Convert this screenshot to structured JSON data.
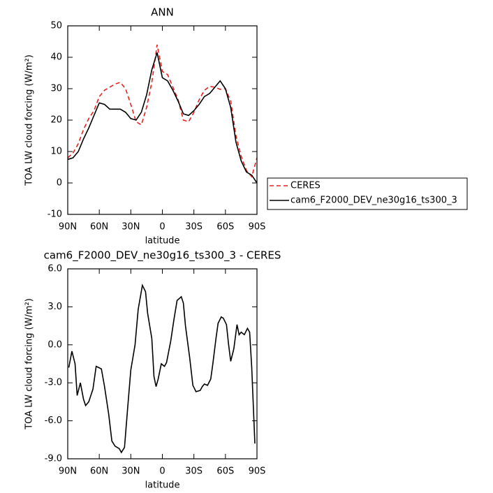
{
  "chart_data": [
    {
      "type": "line",
      "title": "ANN",
      "x_label": "latitude",
      "y_label": "TOA LW cloud forcing (W/m²)",
      "x": [
        90,
        85,
        80,
        75,
        70,
        65,
        60,
        55,
        50,
        45,
        40,
        35,
        30,
        25,
        20,
        15,
        10,
        5,
        0,
        -5,
        -10,
        -15,
        -20,
        -25,
        -30,
        -35,
        -40,
        -45,
        -50,
        -55,
        -60,
        -65,
        -70,
        -75,
        -80,
        -85,
        -90
      ],
      "series": [
        {
          "name": "CERES",
          "color": "#e8201e",
          "style": "dashed",
          "values": [
            8,
            9.5,
            12.5,
            17,
            20.5,
            23,
            27.5,
            29.5,
            30.5,
            31.5,
            32,
            30,
            25,
            19.5,
            18.5,
            24,
            32,
            44,
            35.5,
            34.5,
            30.5,
            26.5,
            20,
            19.5,
            22.5,
            26.5,
            29.5,
            30.7,
            30.5,
            29.8,
            30,
            26,
            15,
            8.5,
            4,
            2,
            8
          ]
        },
        {
          "name": "cam6_F2000_DEV_ne30g16_ts300_3",
          "color": "#000000",
          "style": "solid",
          "values": [
            7.5,
            8,
            10,
            14,
            17.5,
            21.5,
            25.5,
            25,
            23.5,
            23.5,
            23.5,
            22.5,
            20.5,
            20,
            22.5,
            28,
            36,
            41.5,
            33.5,
            32.5,
            29.5,
            26,
            22,
            21.5,
            23,
            25,
            27.5,
            28.5,
            30.5,
            32.5,
            30,
            24,
            13,
            7,
            3.5,
            2.5,
            0
          ]
        }
      ],
      "xlim": [
        90,
        -90
      ],
      "xticks": [
        {
          "value": 90,
          "label": "90N"
        },
        {
          "value": 60,
          "label": "60N"
        },
        {
          "value": 30,
          "label": "30N"
        },
        0,
        {
          "value": -30,
          "label": "30S"
        },
        {
          "value": -60,
          "label": "60S"
        },
        {
          "value": -90,
          "label": "90S"
        }
      ],
      "ylim": [
        -10,
        50
      ],
      "yticks": [
        -10,
        0,
        10,
        20,
        30,
        40,
        50
      ],
      "legend": "right"
    },
    {
      "type": "line",
      "title": "cam6_F2000_DEV_ne30g16_ts300_3 - CERES",
      "x_label": "latitude",
      "y_label": "TOA LW cloud forcing (W/m²)",
      "x": [
        89,
        86,
        83,
        81,
        78,
        75,
        73,
        70,
        66,
        63,
        58,
        55,
        51,
        48,
        45,
        41,
        39,
        36,
        33,
        30,
        26,
        23,
        19,
        16,
        14,
        10,
        8,
        6,
        4,
        1,
        -2,
        -4,
        -8,
        -11,
        -14,
        -18,
        -20,
        -22,
        -26,
        -29,
        -32,
        -36,
        -38,
        -40,
        -43,
        -46,
        -48,
        -51,
        -53,
        -56,
        -58,
        -61,
        -63,
        -65,
        -68,
        -71,
        -73,
        -75,
        -78,
        -81,
        -83,
        -85,
        -88
      ],
      "values": [
        -1.8,
        -0.5,
        -1.5,
        -4.0,
        -3.0,
        -4.3,
        -4.8,
        -4.5,
        -3.5,
        -1.7,
        -1.9,
        -3.3,
        -5.5,
        -7.6,
        -8.0,
        -8.2,
        -8.5,
        -8.1,
        -5.0,
        -2.0,
        0.0,
        2.8,
        4.7,
        4.2,
        2.5,
        0.5,
        -2.5,
        -3.3,
        -2.7,
        -1.5,
        -1.7,
        -1.4,
        0.3,
        2.0,
        3.5,
        3.8,
        3.3,
        1.5,
        -1.0,
        -3.2,
        -3.7,
        -3.6,
        -3.3,
        -3.1,
        -3.2,
        -2.7,
        -1.5,
        0.5,
        1.7,
        2.2,
        2.1,
        1.6,
        0.0,
        -1.3,
        -0.3,
        1.6,
        0.8,
        1.0,
        0.8,
        1.3,
        1.0,
        -1.8,
        -7.8
      ],
      "color": "#000000",
      "xlim": [
        90,
        -90
      ],
      "xticks": [
        {
          "value": 90,
          "label": "90N"
        },
        {
          "value": 60,
          "label": "60N"
        },
        {
          "value": 30,
          "label": "30N"
        },
        0,
        {
          "value": -30,
          "label": "30S"
        },
        {
          "value": -60,
          "label": "60S"
        },
        {
          "value": -90,
          "label": "90S"
        }
      ],
      "ylim": [
        -9,
        6
      ],
      "yticks": [
        {
          "value": -9,
          "label": "-9.0"
        },
        {
          "value": -6,
          "label": "-6.0"
        },
        {
          "value": -3,
          "label": "-3.0"
        },
        {
          "value": 0,
          "label": "0.0"
        },
        {
          "value": 3,
          "label": "3.0"
        },
        {
          "value": 6,
          "label": "6.0"
        }
      ]
    }
  ]
}
